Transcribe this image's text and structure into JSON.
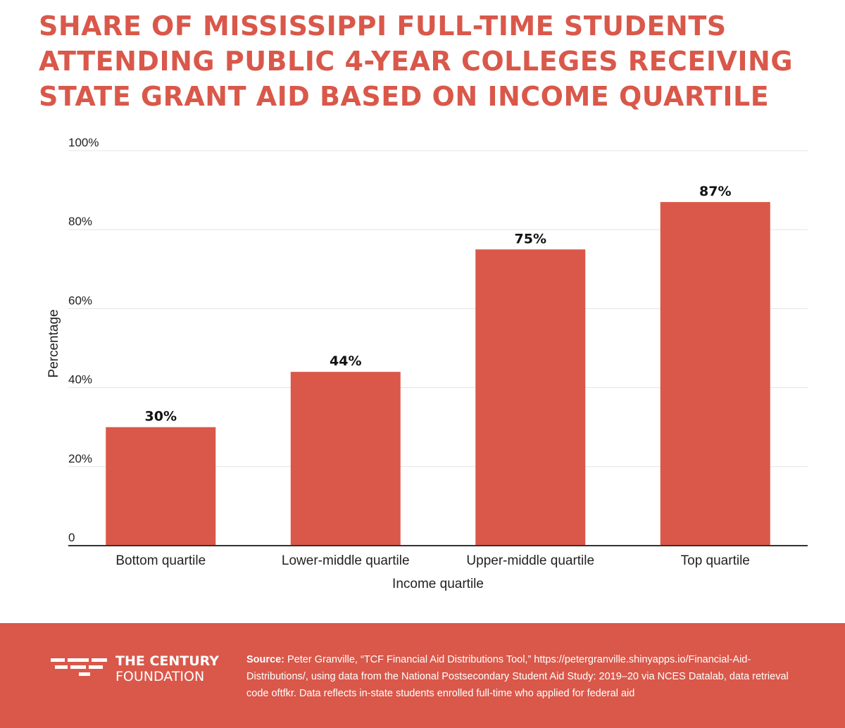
{
  "title_lines": [
    "SHARE OF MISSISSIPPI FULL-TIME STUDENTS",
    "ATTENDING PUBLIC 4-YEAR COLLEGES RECEIVING",
    "STATE GRANT AID BASED ON INCOME QUARTILE"
  ],
  "chart_data": {
    "type": "bar",
    "title": "SHARE OF MISSISSIPPI FULL-TIME STUDENTS ATTENDING PUBLIC 4-YEAR COLLEGES RECEIVING STATE GRANT AID BASED ON INCOME QUARTILE",
    "categories": [
      "Bottom quartile",
      "Lower-middle quartile",
      "Upper-middle quartile",
      "Top quartile"
    ],
    "values": [
      30,
      44,
      75,
      87
    ],
    "data_labels": [
      "30%",
      "44%",
      "75%",
      "87%"
    ],
    "xlabel": "Income quartile",
    "ylabel": "Percentage",
    "ylim": [
      0,
      100
    ],
    "yticks": [
      0,
      20,
      40,
      60,
      80,
      100
    ],
    "ytick_labels": [
      "0",
      "20%",
      "40%",
      "60%",
      "80%",
      "100%"
    ],
    "grid": true,
    "bar_color": "#d9584a"
  },
  "footer": {
    "brand_line1": "THE CENTURY",
    "brand_line2": "FOUNDATION",
    "source_label": "Source:",
    "source_text": "Peter Granville, “TCF Financial Aid Distributions Tool,” https://petergranville.shinyapps.io/Financial-Aid-Distributions/, using data from the National Postsecondary Student Aid Study: 2019–20 via NCES Datalab, data retrieval code oftfkr. Data reflects in-state students enrolled full-time who applied for federal aid",
    "background_color": "#d9584a"
  }
}
